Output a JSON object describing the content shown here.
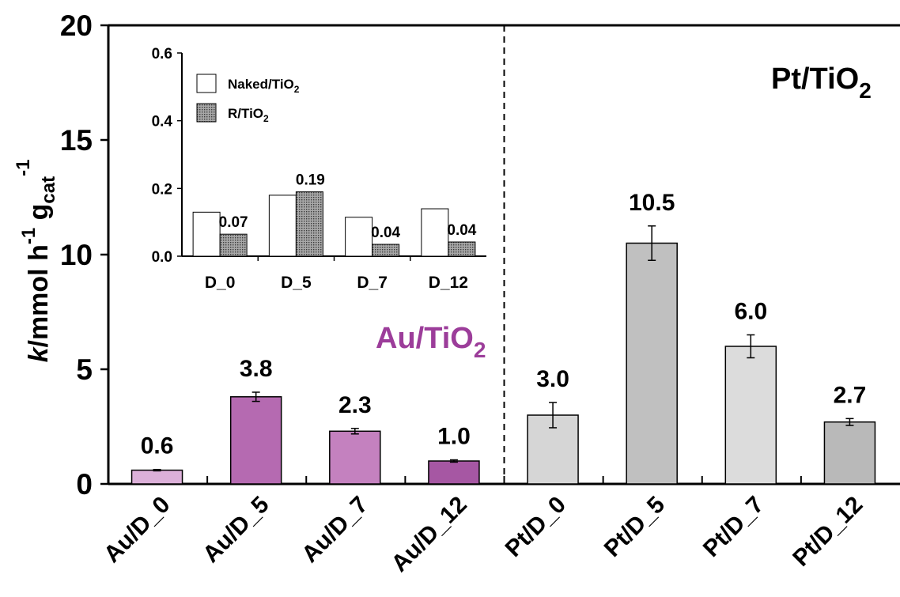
{
  "chart_data": [
    {
      "type": "bar",
      "ylabel": {
        "italic": "k",
        "main": "/mmol h",
        "sup1": "-1",
        "mid": " g",
        "sub": "cat",
        "sup2": "-1"
      },
      "ylim": [
        0,
        20
      ],
      "yticks": [
        "0",
        "5",
        "10",
        "15",
        "20"
      ],
      "categories": [
        "Au/D_0",
        "Au/D_5",
        "Au/D_7",
        "Au/D_12",
        "Pt/D_0",
        "Pt/D_5",
        "Pt/D_7",
        "Pt/D_12"
      ],
      "values": [
        0.6,
        3.8,
        2.3,
        1.0,
        3.0,
        10.5,
        6.0,
        2.7
      ],
      "errors": [
        0.03,
        0.2,
        0.12,
        0.05,
        0.55,
        0.75,
        0.5,
        0.15
      ],
      "labels": [
        "0.6",
        "3.8",
        "2.3",
        "1.0",
        "3.0",
        "10.5",
        "6.0",
        "2.7"
      ],
      "colors": [
        "#dcb0d9",
        "#b56ab1",
        "#c481bf",
        "#a657a3",
        "#d6d6d6",
        "#c0c0c0",
        "#dcdcdc",
        "#b9b9b9"
      ],
      "group_labels": [
        {
          "main": "Au/TiO",
          "sub": "2",
          "color": "#9c3d9a"
        },
        {
          "main": "Pt/TiO",
          "sub": "2",
          "color": "#000000"
        }
      ],
      "grid": false
    },
    {
      "type": "bar",
      "ylim": [
        0,
        0.6
      ],
      "yticks": [
        "0.0",
        "0.2",
        "0.4",
        "0.6"
      ],
      "categories": [
        "D_0",
        "D_5",
        "D_7",
        "D_12"
      ],
      "series": [
        {
          "name": {
            "main": "Naked/TiO",
            "sub": "2"
          },
          "values": [
            0.13,
            0.18,
            0.115,
            0.14
          ],
          "color": "#ffffff",
          "pattern": false
        },
        {
          "name": {
            "main": "R/TiO",
            "sub": "2"
          },
          "values": [
            0.065,
            0.19,
            0.035,
            0.042
          ],
          "color": "#8c8c8c",
          "pattern": true
        }
      ],
      "labels": [
        "0.07",
        "0.19",
        "0.04",
        "0.04"
      ],
      "legend": "top-left",
      "grid": false
    }
  ]
}
